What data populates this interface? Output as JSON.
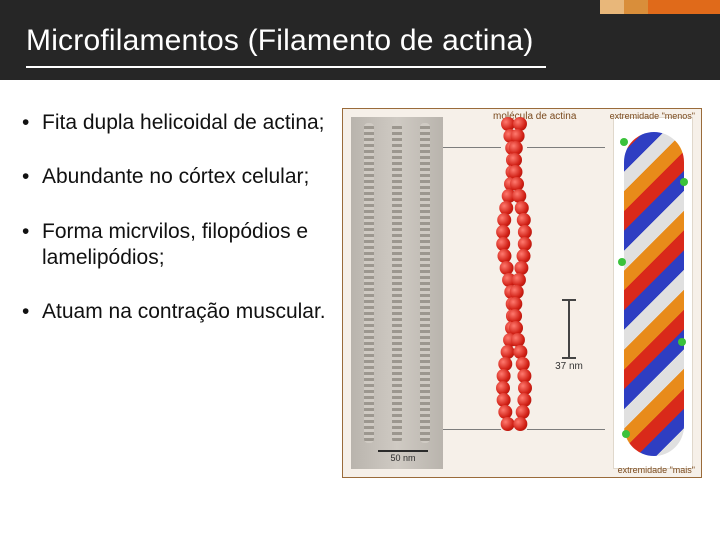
{
  "header": {
    "title": "Microfilamentos (Filamento de actina)",
    "bg_color": "#262626",
    "accent_colors": [
      "#e8b77a",
      "#d98e3a",
      "#e06a1a"
    ]
  },
  "bullets": [
    "Fita dupla helicoidal de actina;",
    "Abundante no córtex celular;",
    "Forma micrvilos, filopódios e lamelipódios;",
    "Atuam na contração muscular."
  ],
  "figure": {
    "monomer_label": "molécula de actina",
    "end_minus": "extremidade \"menos\"",
    "end_plus": "extremidade \"mais\"",
    "measurement": "37 nm",
    "em_scale": "50 nm",
    "colors": {
      "actin_red": "#d01f14",
      "mol_blue": "#2e3ec2",
      "mol_orange": "#e88b1a",
      "mol_white": "#e0e0e0",
      "mol_green": "#3bc23b",
      "border": "#9a6b3a",
      "bg": "#f6f0e9",
      "em_gray": "#b9b4ad"
    },
    "helix_bead_count": 26
  },
  "typography": {
    "title_fontsize": 30,
    "bullet_fontsize": 21,
    "figure_label_fontsize": 10
  }
}
